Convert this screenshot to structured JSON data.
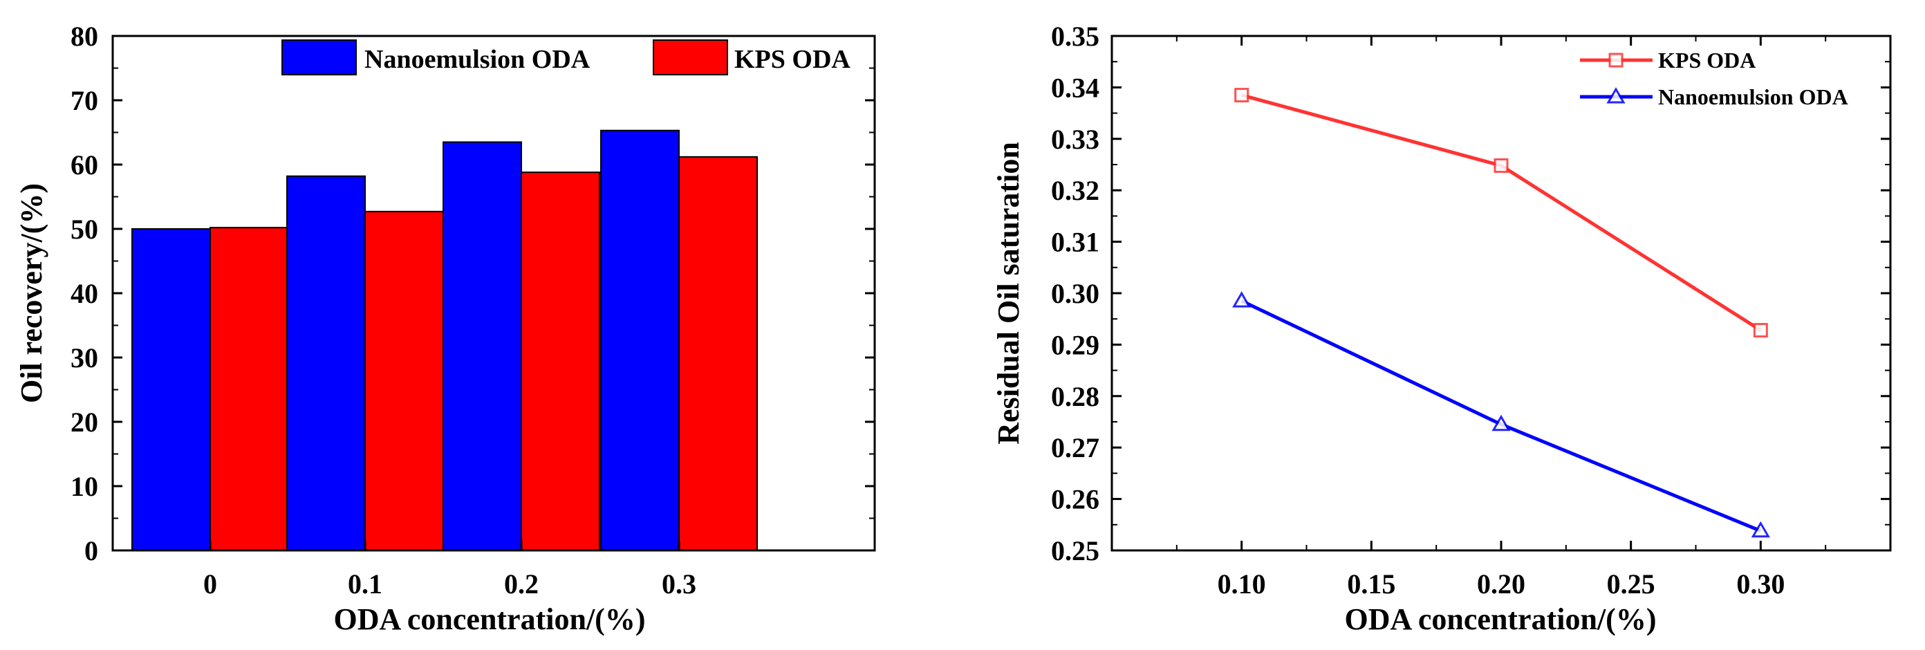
{
  "chart_data": [
    {
      "type": "bar",
      "title": "",
      "xlabel": "ODA concentration/(%)",
      "ylabel": "Oil recovery/(%)",
      "categories": [
        "0",
        "0.1",
        "0.2",
        "0.3"
      ],
      "ylim": [
        0,
        80
      ],
      "yticks": [
        "0",
        "10",
        "20",
        "30",
        "40",
        "50",
        "60",
        "70",
        "80"
      ],
      "legend_position": "top",
      "series": [
        {
          "name": "Nanoemulsion ODA",
          "color": "#0000ff",
          "values": [
            50.0,
            58.2,
            63.5,
            65.3
          ]
        },
        {
          "name": "KPS ODA",
          "color": "#ff0000",
          "values": [
            50.2,
            52.7,
            58.8,
            61.2
          ]
        }
      ]
    },
    {
      "type": "line",
      "title": "",
      "xlabel": "ODA concentration/(%)",
      "ylabel": "Residual Oil saturation",
      "x": [
        0.1,
        0.2,
        0.3
      ],
      "xlim": [
        0.05,
        0.35
      ],
      "ylim": [
        0.25,
        0.35
      ],
      "xticks": [
        "0.10",
        "0.15",
        "0.20",
        "0.25",
        "0.30"
      ],
      "yticks": [
        "0.25",
        "0.26",
        "0.27",
        "0.28",
        "0.29",
        "0.30",
        "0.31",
        "0.32",
        "0.33",
        "0.34",
        "0.35"
      ],
      "legend_position": "top-right",
      "series": [
        {
          "name": "KPS ODA",
          "color": "#ff3333",
          "marker": "square",
          "values": [
            0.3385,
            0.3248,
            0.2928
          ]
        },
        {
          "name": "Nanoemulsion ODA",
          "color": "#0000ff",
          "marker": "triangle",
          "values": [
            0.2985,
            0.2745,
            0.2538
          ]
        }
      ]
    }
  ]
}
